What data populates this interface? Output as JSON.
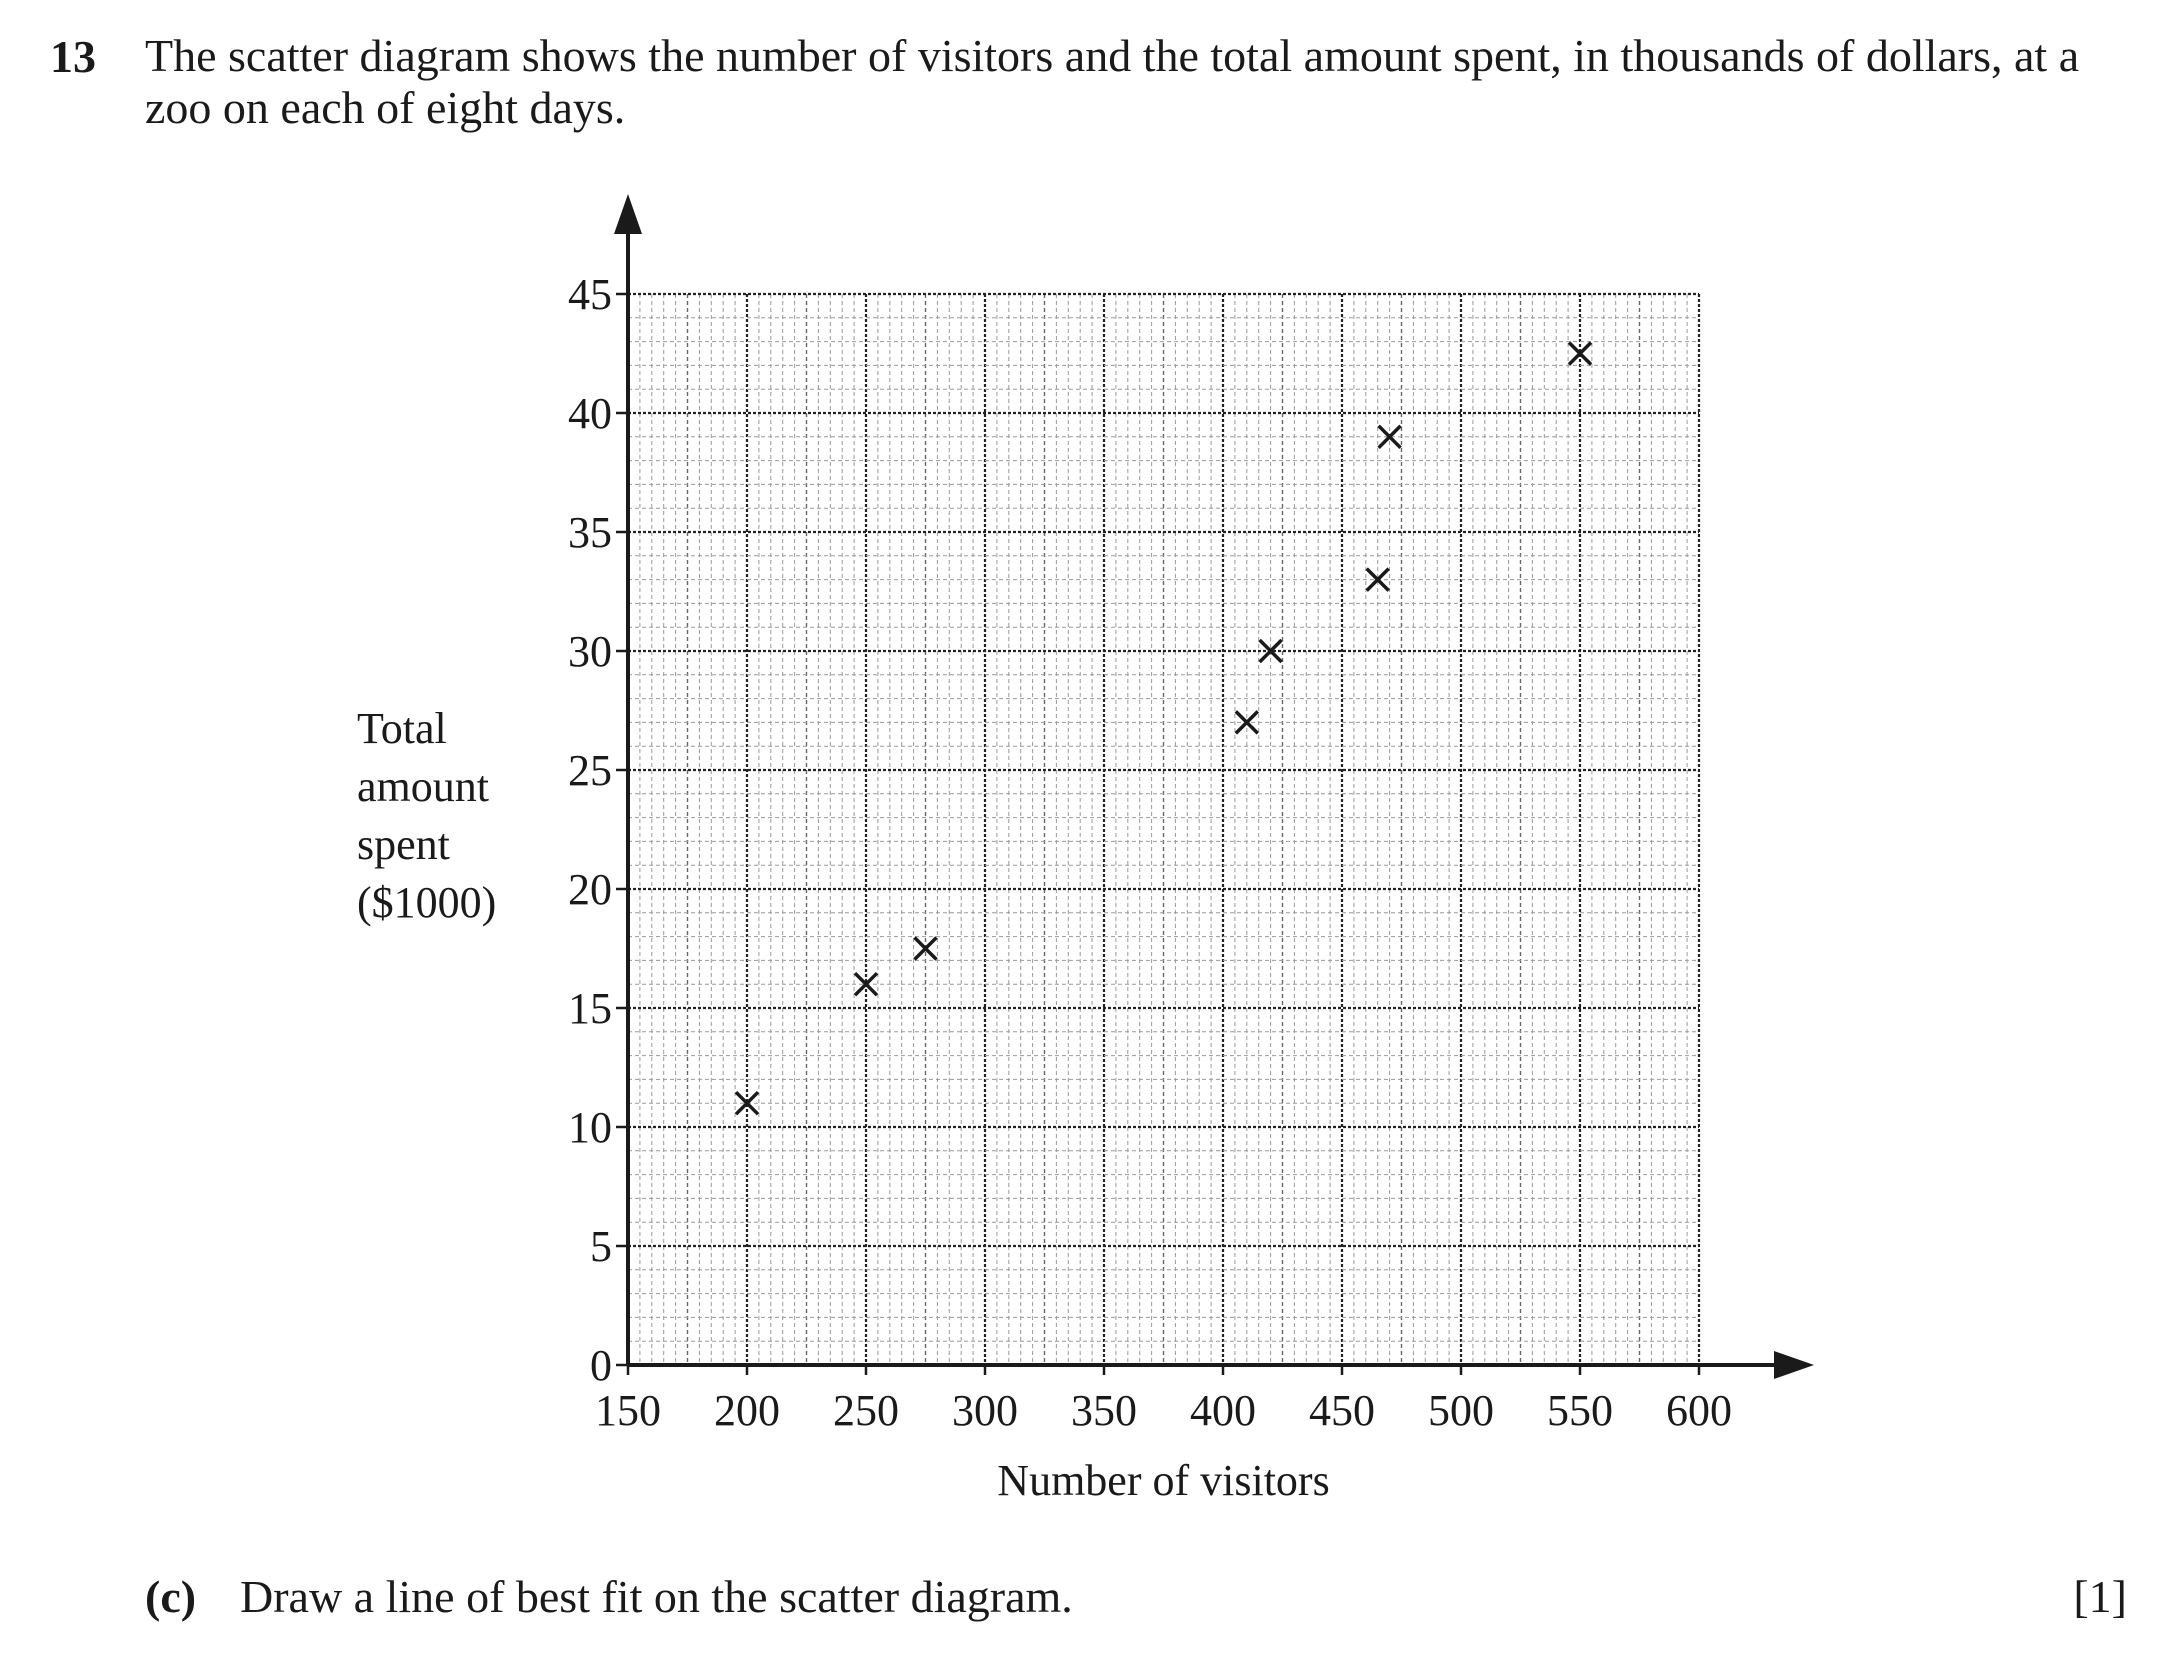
{
  "question": {
    "number": "13",
    "text": "The scatter diagram shows the number of visitors and the total amount spent, in thousands of dollars, at a zoo on each of eight days."
  },
  "chart_data": {
    "type": "scatter",
    "title": "",
    "xlabel": "Number of visitors",
    "ylabel_lines": [
      "Total",
      "amount",
      "spent",
      "($1000)"
    ],
    "xlim": [
      150,
      600
    ],
    "ylim": [
      0,
      45
    ],
    "x_ticks": [
      150,
      200,
      250,
      300,
      350,
      400,
      450,
      500,
      550,
      600
    ],
    "y_ticks": [
      0,
      5,
      10,
      15,
      20,
      25,
      30,
      35,
      40,
      45
    ],
    "marker": "cross",
    "grid": true,
    "points": [
      {
        "x": 200,
        "y": 11
      },
      {
        "x": 250,
        "y": 16
      },
      {
        "x": 275,
        "y": 17.5
      },
      {
        "x": 410,
        "y": 27
      },
      {
        "x": 420,
        "y": 30
      },
      {
        "x": 465,
        "y": 33
      },
      {
        "x": 470,
        "y": 39
      },
      {
        "x": 550,
        "y": 42.5
      }
    ]
  },
  "part": {
    "label": "(c)",
    "text": "Draw a line of best fit on the scatter diagram.",
    "marks": "[1]"
  }
}
